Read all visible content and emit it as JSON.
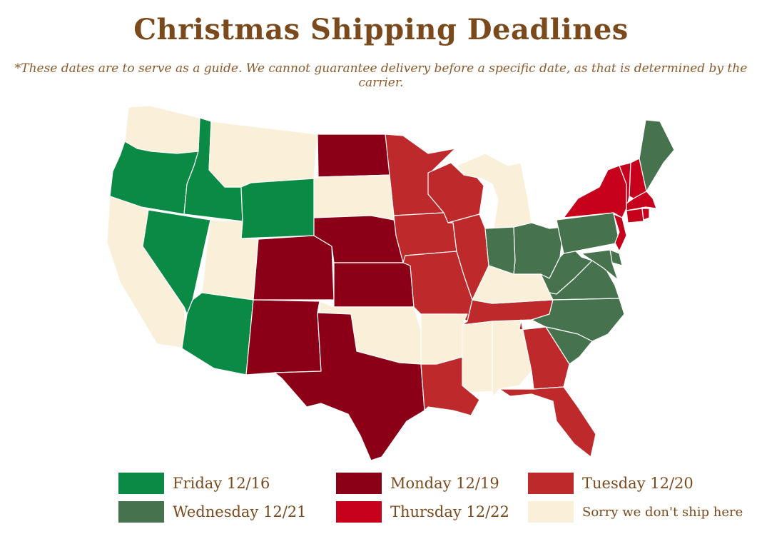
{
  "title": "Christmas Shipping Deadlines",
  "subtitle": "*These dates are to serve as a guide. We cannot guarantee delivery before a specific date, as that is determined by the carrier.",
  "colors": {
    "friday": "#0a8a45",
    "monday": "#8b0016",
    "tuesday": "#be2a2c",
    "wednesday": "#46734e",
    "thursday": "#c7001c",
    "none": "#faf0da",
    "border": "#ffffff",
    "text": "#7a4a1c"
  },
  "legend": [
    {
      "key": "friday",
      "label": "Friday 12/16"
    },
    {
      "key": "monday",
      "label": "Monday 12/19"
    },
    {
      "key": "tuesday",
      "label": "Tuesday 12/20"
    },
    {
      "key": "wednesday",
      "label": "Wednesday 12/21"
    },
    {
      "key": "thursday",
      "label": "Thursday 12/22"
    },
    {
      "key": "none",
      "label": "Sorry we don't ship here"
    }
  ],
  "regions": {
    "friday": [
      "Oregon",
      "Idaho",
      "Nevada",
      "Wyoming",
      "Arizona"
    ],
    "monday": [
      "North Dakota",
      "Nebraska",
      "Colorado",
      "Kansas",
      "New Mexico",
      "Texas"
    ],
    "tuesday": [
      "Minnesota",
      "Wisconsin",
      "Iowa",
      "Illinois",
      "Missouri",
      "Tennessee",
      "Georgia",
      "Florida",
      "Louisiana"
    ],
    "wednesday": [
      "Maine",
      "Pennsylvania",
      "Ohio",
      "Indiana",
      "West Virginia",
      "Virginia",
      "North Carolina",
      "South Carolina",
      "Maryland",
      "Delaware"
    ],
    "thursday": [
      "New York",
      "Vermont",
      "New Hampshire",
      "Massachusetts",
      "Connecticut",
      "Rhode Island",
      "New Jersey"
    ],
    "none": [
      "Washington",
      "Montana",
      "California",
      "Utah",
      "South Dakota",
      "Oklahoma",
      "Arkansas",
      "Mississippi",
      "Alabama",
      "Kentucky",
      "Michigan"
    ]
  }
}
